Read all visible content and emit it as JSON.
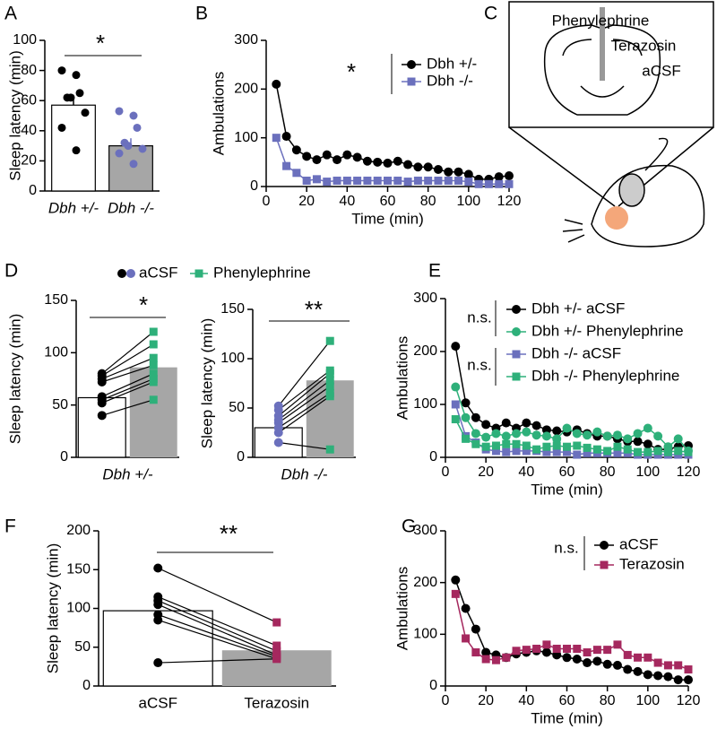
{
  "chart_data": [
    {
      "panel": "A",
      "type": "bar",
      "ylabel": "Sleep latency (min)",
      "categories": [
        "Dbh +/-",
        "Dbh -/-"
      ],
      "values": [
        57,
        30
      ],
      "errors": [
        6,
        5
      ],
      "points": [
        [
          80,
          77,
          65,
          62,
          62,
          52,
          42,
          27
        ],
        [
          53,
          50,
          42,
          32,
          30,
          28,
          25,
          18
        ]
      ],
      "colors": [
        "#000000",
        "#6b70bd"
      ],
      "bar_fills": [
        "#ffffff",
        "#a6a6a6"
      ],
      "ylim": [
        0,
        100
      ],
      "yticks": [
        0,
        20,
        40,
        60,
        80,
        100
      ],
      "annotations": [
        "*"
      ]
    },
    {
      "panel": "B",
      "type": "line",
      "xlabel": "Time (min)",
      "ylabel": "Ambulations",
      "x": [
        5,
        10,
        15,
        20,
        25,
        30,
        35,
        40,
        45,
        50,
        55,
        60,
        65,
        70,
        75,
        80,
        85,
        90,
        95,
        100,
        105,
        110,
        115,
        120
      ],
      "series": [
        {
          "name": "Dbh +/-",
          "color": "#000000",
          "marker": "circle",
          "values": [
            210,
            103,
            75,
            62,
            55,
            65,
            55,
            65,
            60,
            52,
            50,
            48,
            52,
            45,
            40,
            40,
            35,
            30,
            30,
            25,
            15,
            15,
            20,
            22
          ]
        },
        {
          "name": "Dbh -/-",
          "color": "#6b70bd",
          "marker": "square",
          "values": [
            100,
            42,
            28,
            12,
            15,
            10,
            12,
            12,
            12,
            12,
            12,
            12,
            12,
            10,
            12,
            12,
            12,
            12,
            12,
            10,
            5,
            5,
            5,
            5
          ]
        }
      ],
      "xlim": [
        0,
        120
      ],
      "xticks": [
        0,
        20,
        40,
        60,
        80,
        100,
        120
      ],
      "ylim": [
        0,
        300
      ],
      "yticks": [
        0,
        100,
        200,
        300
      ],
      "annotations": [
        "*"
      ]
    },
    {
      "panel": "C",
      "type": "diagram",
      "labels": [
        {
          "text": "Phenylephrine",
          "color": "#2e9a5a"
        },
        {
          "text": "Terazosin",
          "color": "#a5285e"
        },
        {
          "text": "aCSF",
          "color": "#000000"
        }
      ]
    },
    {
      "panel": "D",
      "type": "paired",
      "ylabel": "Sleep latency (min)",
      "category": "Dbh +/-",
      "series": [
        {
          "name": "aCSF",
          "color": "#000000",
          "bar_fill": "#ffffff",
          "mean": 57,
          "values": [
            80,
            78,
            75,
            72,
            58,
            55,
            52,
            40
          ]
        },
        {
          "name": "Phenylephrine",
          "color": "#2eb07a",
          "bar_fill": "#a6a6a6",
          "mean": 86,
          "values": [
            120,
            108,
            95,
            88,
            80,
            75,
            72,
            55
          ]
        }
      ],
      "ylim": [
        0,
        150
      ],
      "yticks": [
        0,
        50,
        100,
        150
      ],
      "annotations": [
        "*"
      ]
    },
    {
      "type": "paired",
      "ylabel": "Sleep latency (min)",
      "category": "Dbh -/-",
      "series": [
        {
          "color": "#6b70bd",
          "bar_fill": "#ffffff",
          "mean": 30,
          "values": [
            52,
            48,
            42,
            38,
            35,
            30,
            25,
            15
          ]
        },
        {
          "color": "#2eb07a",
          "bar_fill": "#a6a6a6",
          "mean": 78,
          "values": [
            118,
            88,
            85,
            78,
            72,
            65,
            62,
            8
          ]
        }
      ],
      "ylim": [
        0,
        150
      ],
      "yticks": [
        0,
        50,
        100,
        150
      ],
      "annotations": [
        "**"
      ]
    },
    {
      "panel": "E",
      "type": "line",
      "xlabel": "Time (min)",
      "ylabel": "Ambulations",
      "x": [
        5,
        10,
        15,
        20,
        25,
        30,
        35,
        40,
        45,
        50,
        55,
        60,
        65,
        70,
        75,
        80,
        85,
        90,
        95,
        100,
        105,
        110,
        115,
        120
      ],
      "series": [
        {
          "name": "Dbh +/- aCSF",
          "color": "#000000",
          "marker": "circle",
          "values": [
            210,
            103,
            75,
            62,
            55,
            65,
            55,
            65,
            60,
            52,
            50,
            48,
            52,
            45,
            40,
            40,
            35,
            30,
            30,
            25,
            15,
            15,
            20,
            22
          ]
        },
        {
          "name": "Dbh +/- Phenylephrine",
          "color": "#2eb07a",
          "marker": "circle",
          "values": [
            133,
            75,
            45,
            38,
            45,
            40,
            45,
            48,
            42,
            40,
            35,
            55,
            45,
            42,
            48,
            40,
            42,
            35,
            45,
            55,
            40,
            20,
            35,
            12
          ]
        },
        {
          "name": "Dbh -/- aCSF",
          "color": "#6b70bd",
          "marker": "square",
          "values": [
            100,
            40,
            28,
            15,
            12,
            10,
            12,
            12,
            12,
            10,
            10,
            10,
            5,
            8,
            8,
            8,
            8,
            8,
            5,
            5,
            5,
            5,
            5,
            5
          ]
        },
        {
          "name": "Dbh -/- Phenylephrine",
          "color": "#2eb07a",
          "marker": "square",
          "values": [
            72,
            35,
            25,
            20,
            22,
            25,
            25,
            22,
            15,
            20,
            22,
            20,
            22,
            18,
            15,
            12,
            20,
            15,
            10,
            10,
            12,
            10,
            12,
            10
          ]
        }
      ],
      "xlim": [
        0,
        120
      ],
      "xticks": [
        0,
        20,
        40,
        60,
        80,
        100,
        120
      ],
      "ylim": [
        0,
        300
      ],
      "yticks": [
        0,
        100,
        200,
        300
      ],
      "annotations": [
        "n.s.",
        "n.s."
      ]
    },
    {
      "panel": "F",
      "type": "paired",
      "ylabel": "Sleep latency (min)",
      "series": [
        {
          "name": "aCSF",
          "color": "#000000",
          "bar_fill": "#ffffff",
          "mean": 97,
          "values": [
            152,
            115,
            110,
            105,
            92,
            85,
            30
          ]
        },
        {
          "name": "Terazosin",
          "color": "#a5285e",
          "bar_fill": "#a6a6a6",
          "mean": 46,
          "values": [
            82,
            52,
            45,
            40,
            38,
            35,
            35
          ]
        }
      ],
      "ylim": [
        0,
        200
      ],
      "yticks": [
        0,
        50,
        100,
        150,
        200
      ],
      "annotations": [
        "**"
      ]
    },
    {
      "panel": "G",
      "type": "line",
      "xlabel": "Time (min)",
      "ylabel": "Ambulations",
      "x": [
        5,
        10,
        15,
        20,
        25,
        30,
        35,
        40,
        45,
        50,
        55,
        60,
        65,
        70,
        75,
        80,
        85,
        90,
        95,
        100,
        105,
        110,
        115,
        120
      ],
      "series": [
        {
          "name": "aCSF",
          "color": "#000000",
          "marker": "circle",
          "values": [
            205,
            150,
            110,
            65,
            60,
            55,
            62,
            65,
            68,
            65,
            60,
            55,
            52,
            45,
            48,
            42,
            40,
            32,
            28,
            22,
            20,
            18,
            12,
            12
          ]
        },
        {
          "name": "Terazosin",
          "color": "#a5285e",
          "marker": "square",
          "values": [
            178,
            92,
            65,
            52,
            50,
            55,
            68,
            70,
            72,
            80,
            72,
            72,
            72,
            65,
            70,
            70,
            80,
            60,
            55,
            55,
            45,
            40,
            40,
            32
          ]
        }
      ],
      "xlim": [
        0,
        120
      ],
      "xticks": [
        0,
        20,
        40,
        60,
        80,
        100,
        120
      ],
      "ylim": [
        0,
        300
      ],
      "yticks": [
        0,
        100,
        200,
        300
      ],
      "annotations": [
        "n.s."
      ]
    }
  ]
}
